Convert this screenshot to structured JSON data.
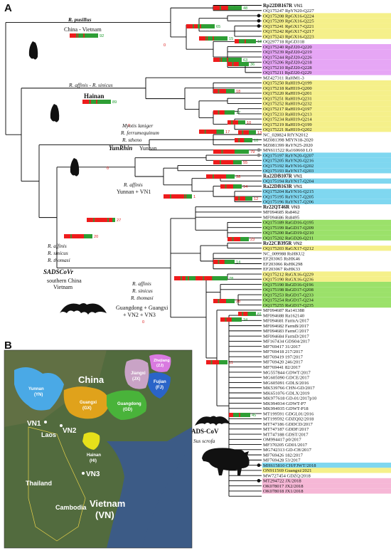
{
  "panels": {
    "a": "A",
    "b": "B"
  },
  "colors": {
    "red": "#ee1c1c",
    "green": "#2e9e35",
    "branch": "#000000"
  },
  "tips": [
    {
      "name": "Rp22DB167R",
      "vn": "VN1",
      "bold": true,
      "hl": ""
    },
    {
      "name": "OQ175247 RpYN20-Q227",
      "vn": "",
      "bold": false,
      "hl": ""
    },
    {
      "name": "OQ175208 RpGX16-Q224",
      "vn": "",
      "bold": false,
      "hl": "#f5f08a"
    },
    {
      "name": "OQ175209 RpGX16-Q225",
      "vn": "",
      "bold": false,
      "hl": "#f5f08a"
    },
    {
      "name": "OQ175241 RpGX17-Q221",
      "vn": "",
      "bold": false,
      "hl": "#f5f08a"
    },
    {
      "name": "OQ175242 RpGX17-Q217",
      "vn": "",
      "bold": false,
      "hl": "#f5f08a"
    },
    {
      "name": "OQ175243 RpGX16-Q223",
      "vn": "",
      "bold": false,
      "hl": "#f5f08a"
    },
    {
      "name": "OQ297718 RpGD318",
      "vn": "",
      "bold": false,
      "hl": ""
    },
    {
      "name": "OQ175240 RpZJ20-Q220",
      "vn": "",
      "bold": false,
      "hl": "#e6a6f5"
    },
    {
      "name": "OQ175239 RpZJ20-Q219",
      "vn": "",
      "bold": false,
      "hl": "#e6a6f5"
    },
    {
      "name": "OQ175244 RpZJ20-Q226",
      "vn": "",
      "bold": false,
      "hl": "#e6a6f5"
    },
    {
      "name": "OQ175206 RpZJ20-Q218",
      "vn": "",
      "bold": false,
      "hl": "#e6a6f5"
    },
    {
      "name": "OQ175210 RpZJ20-Q228",
      "vn": "",
      "bold": false,
      "hl": "#e6a6f5"
    },
    {
      "name": "OQ175211 RpZJ20-Q229",
      "vn": "",
      "bold": false,
      "hl": "#e6a6f5"
    },
    {
      "name": "MZ427311 RaHM1-3",
      "vn": "",
      "bold": false,
      "hl": ""
    },
    {
      "name": "OQ175250 RaHI19-Q199",
      "vn": "",
      "bold": false,
      "hl": "#f5f08a"
    },
    {
      "name": "OQ175218 RaHI19-Q200",
      "vn": "",
      "bold": false,
      "hl": "#f5f08a"
    },
    {
      "name": "OQ175220 RaHI19-Q201",
      "vn": "",
      "bold": false,
      "hl": "#f5f08a"
    },
    {
      "name": "OQ175251 RaHI19-Q231",
      "vn": "",
      "bold": false,
      "hl": "#f5f08a"
    },
    {
      "name": "OQ175252 RaHI19-Q232",
      "vn": "",
      "bold": false,
      "hl": "#f5f08a"
    },
    {
      "name": "OQ175217 RaHI19-Q197",
      "vn": "",
      "bold": false,
      "hl": "#f5f08a"
    },
    {
      "name": "OQ175233 RaHI19-Q213",
      "vn": "",
      "bold": false,
      "hl": "#f5f08a"
    },
    {
      "name": "OQ175234 RaHI19-Q214",
      "vn": "",
      "bold": false,
      "hl": "#f5f08a"
    },
    {
      "name": "OQ175219 RaHI19-Q199",
      "vn": "",
      "bold": false,
      "hl": "#f5f08a"
    },
    {
      "name": "OQ175221 RaHI19-Q202",
      "vn": "",
      "bold": false,
      "hl": "#f5f08a"
    },
    {
      "name": "NC_028824 RfYN2012",
      "vn": "",
      "bold": false,
      "hl": ""
    },
    {
      "name": "MZ081398 MlYN18-2020",
      "vn": "",
      "bold": false,
      "hl": ""
    },
    {
      "name": "MZ081399 RsYN25-2020",
      "vn": "",
      "bold": false,
      "hl": ""
    },
    {
      "name": "MN611522 Ra160660 LO",
      "vn": "",
      "bold": false,
      "hl": ""
    },
    {
      "name": "OQ175197 RaYN20-Q207",
      "vn": "",
      "bold": false,
      "hl": "#7fd7f0"
    },
    {
      "name": "OQ175205 RaYN20-Q216",
      "vn": "",
      "bold": false,
      "hl": "#7fd7f0"
    },
    {
      "name": "OQ175192 RaYN16-Q202",
      "vn": "",
      "bold": false,
      "hl": "#7fd7f0"
    },
    {
      "name": "OQ175193 RaYN17-Q203",
      "vn": "",
      "bold": false,
      "hl": "#7fd7f0"
    },
    {
      "name": "Ra22DB107R",
      "vn": "VN1",
      "bold": true,
      "hl": ""
    },
    {
      "name": "OQ175194 RaYN17-Q204",
      "vn": "",
      "bold": false,
      "hl": "#7fd7f0"
    },
    {
      "name": "Ra22DB163R",
      "vn": "VN1",
      "bold": true,
      "hl": ""
    },
    {
      "name": "OQ175204 RaYN16-Q215",
      "vn": "",
      "bold": false,
      "hl": "#7fd7f0"
    },
    {
      "name": "OQ175195 RaYN17-Q205",
      "vn": "",
      "bold": false,
      "hl": "#7fd7f0"
    },
    {
      "name": "OQ175196 RaYN17-Q206",
      "vn": "",
      "bold": false,
      "hl": "#7fd7f0"
    },
    {
      "name": "Rr22QT46R",
      "vn": "VN3",
      "bold": true,
      "hl": ""
    },
    {
      "name": "MF094685 Rs8462",
      "vn": "",
      "bold": false,
      "hl": ""
    },
    {
      "name": "MF094686 Rs8495",
      "vn": "",
      "bold": false,
      "hl": ""
    },
    {
      "name": "OQ175189 RaGD16-Q195",
      "vn": "",
      "bold": false,
      "hl": "#9be16a"
    },
    {
      "name": "OQ175199 RaGD17-Q209",
      "vn": "",
      "bold": false,
      "hl": "#9be16a"
    },
    {
      "name": "OQ175200 RaGD19-Q210",
      "vn": "",
      "bold": false,
      "hl": "#9be16a"
    },
    {
      "name": "OQ175202 RaGD20-Q211",
      "vn": "",
      "bold": false,
      "hl": "#9be16a"
    },
    {
      "name": "Rr22CB395R",
      "vn": "VN2",
      "bold": true,
      "hl": ""
    },
    {
      "name": "OQ175203 RaGX17-Q212",
      "vn": "",
      "bold": false,
      "hl": "#f5f08a"
    },
    {
      "name": "NC_009988 RsHKU2",
      "vn": "",
      "bold": false,
      "hl": ""
    },
    {
      "name": "EF203065 RsHK46",
      "vn": "",
      "bold": false,
      "hl": ""
    },
    {
      "name": "EF203066 RsHK298",
      "vn": "",
      "bold": false,
      "hl": ""
    },
    {
      "name": "EF203067 RsHK33",
      "vn": "",
      "bold": false,
      "hl": ""
    },
    {
      "name": "OQ175212 RsGX16-Q229",
      "vn": "",
      "bold": false,
      "hl": "#f5f08a"
    },
    {
      "name": "OQ175190 RsGX16-Q236",
      "vn": "",
      "bold": false,
      "hl": "#f5f08a"
    },
    {
      "name": "OQ175190 RsGD16-Q196",
      "vn": "",
      "bold": false,
      "hl": "#9be16a"
    },
    {
      "name": "OQ175198 RsGD17-Q208",
      "vn": "",
      "bold": false,
      "hl": "#9be16a"
    },
    {
      "name": "OQ175253 RsGD17-Q233",
      "vn": "",
      "bold": false,
      "hl": "#9be16a"
    },
    {
      "name": "OQ175254 RsGD17-Q234",
      "vn": "",
      "bold": false,
      "hl": "#9be16a"
    },
    {
      "name": "OQ175255 RsGD17-Q235",
      "vn": "",
      "bold": false,
      "hl": "#9be16a"
    },
    {
      "name": "MF094687 Ra141388",
      "vn": "",
      "bold": false,
      "hl": ""
    },
    {
      "name": "MF094688 Ra162140",
      "vn": "",
      "bold": false,
      "hl": ""
    },
    {
      "name": "MF094681 FarmA/2017",
      "vn": "",
      "bold": false,
      "hl": ""
    },
    {
      "name": "MF094682 FarmB/2017",
      "vn": "",
      "bold": false,
      "hl": ""
    },
    {
      "name": "MF094683 FarmC/2017",
      "vn": "",
      "bold": false,
      "hl": ""
    },
    {
      "name": "MF094684 FarmD/2017",
      "vn": "",
      "bold": false,
      "hl": ""
    },
    {
      "name": "MF167434 GDS04/2017",
      "vn": "",
      "bold": false,
      "hl": ""
    },
    {
      "name": "MF769417 31/2017",
      "vn": "",
      "bold": false,
      "hl": ""
    },
    {
      "name": "MF769418 217/2017",
      "vn": "",
      "bold": false,
      "hl": ""
    },
    {
      "name": "MF769419 197/2017",
      "vn": "",
      "bold": false,
      "hl": ""
    },
    {
      "name": "MF769420 246/2017",
      "vn": "",
      "bold": false,
      "hl": ""
    },
    {
      "name": "MF769441 82/2017",
      "vn": "",
      "bold": false,
      "hl": ""
    },
    {
      "name": "MG557844 GDWT/2017",
      "vn": "",
      "bold": false,
      "hl": ""
    },
    {
      "name": "MG605090 GDCE/2017",
      "vn": "",
      "bold": false,
      "hl": ""
    },
    {
      "name": "MG605091 GDLS/2016",
      "vn": "",
      "bold": false,
      "hl": ""
    },
    {
      "name": "MK539766 CHN-GD/2017",
      "vn": "",
      "bold": false,
      "hl": ""
    },
    {
      "name": "MK651076 GDLX/2019",
      "vn": "",
      "bold": false,
      "hl": ""
    },
    {
      "name": "MK977618 GD-01/2017p10",
      "vn": "",
      "bold": false,
      "hl": ""
    },
    {
      "name": "MK994934 GDWT-P7",
      "vn": "",
      "bold": false,
      "hl": ""
    },
    {
      "name": "MK994935 GDWT-P18",
      "vn": "",
      "bold": false,
      "hl": ""
    },
    {
      "name": "MT199591 GDGL01/2016",
      "vn": "",
      "bold": false,
      "hl": ""
    },
    {
      "name": "MT199592 GDZQ02/2018",
      "vn": "",
      "bold": false,
      "hl": ""
    },
    {
      "name": "MT747186 GDDCD/2017",
      "vn": "",
      "bold": false,
      "hl": ""
    },
    {
      "name": "MT747187 GDDF/2017",
      "vn": "",
      "bold": false,
      "hl": ""
    },
    {
      "name": "MT747188 GDST/2017",
      "vn": "",
      "bold": false,
      "hl": ""
    },
    {
      "name": "OM994417 p0/2017",
      "vn": "",
      "bold": false,
      "hl": ""
    },
    {
      "name": "MF370205 GD01/2017",
      "vn": "",
      "bold": false,
      "hl": ""
    },
    {
      "name": "MG742313 GD-CH/2017",
      "vn": "",
      "bold": false,
      "hl": ""
    },
    {
      "name": "MF769426 182/2017",
      "vn": "",
      "bold": false,
      "hl": ""
    },
    {
      "name": "MF769428 53/2017",
      "vn": "",
      "bold": false,
      "hl": ""
    },
    {
      "name": "MH615810 CH/FJWT/2018",
      "vn": "",
      "bold": false,
      "hl": "#7fd7f0"
    },
    {
      "name": "ON911569 Guangxi/2021",
      "vn": "",
      "bold": false,
      "hl": "#f5f08a"
    },
    {
      "name": "MW727454 GDZQ/2018",
      "vn": "",
      "bold": false,
      "hl": ""
    },
    {
      "name": "MT294722 JX/2018",
      "vn": "",
      "bold": false,
      "hl": "#f6b7d6"
    },
    {
      "name": "OK078017 JX2/2018",
      "vn": "",
      "bold": false,
      "hl": "#f6b7d6"
    },
    {
      "name": "OK078018 JX1/2018",
      "vn": "",
      "bold": false,
      "hl": "#f6b7d6"
    }
  ],
  "clade_labels": {
    "pusillus_sp": "R. pusillus",
    "pusillus_loc": "China - Vietnam",
    "hainan_sp": "R. affinis - R. sinicus",
    "hainan_loc": "Hainan",
    "yunrhin_sp1": "Myotis laniger",
    "yunrhin_sp2": "R. ferrumequinum",
    "yunrhin_sp3": "R. stheno",
    "yunrhin_name": "YunRhin",
    "yunrhin_loc": "Yunnan",
    "ra_sp": "R. affinis",
    "ra_loc": "Yunnan + VN1",
    "sadscovr_sp1": "R. affinis",
    "sadscovr_sp2": "R. sinicus",
    "sadscovr_sp3": "R. thomasi",
    "sadscovr_name": "SADSCoVr",
    "sadscovr_loc1": "southern China",
    "sadscovr_loc2": "Vietnam",
    "gd_sp1": "R. affinis",
    "gd_sp2": "R. sinicus",
    "gd_sp3": "R. thomasi",
    "gd_loc1": "Guangdong + Guangxi",
    "gd_loc2": "+ VN2 + VN3",
    "sads_name": "SADS-CoV",
    "sads_host": "Sus scrofa"
  },
  "support": {
    "pusillus": "92",
    "top": "48",
    "rp_a": "65",
    "rp_b": "15",
    "rp_c": "18",
    "rp_d": "63",
    "rp_e": "36",
    "hainan": "89",
    "h_a": "18",
    "h_b": "17",
    "h_c": "10",
    "h_d": "13",
    "h_e": "10",
    "h_f": "17",
    "h_g": "3",
    "yunrhin": "79",
    "ra_top": "55",
    "ra_a": "38",
    "ra_b": "14",
    "ra_c": "12",
    "ra_3": "3",
    "ra_4": "4",
    "ra_11": "11",
    "ra_1": "1",
    "ra_8": "8",
    "root_27": "27",
    "sadscovr": "20",
    "gd_59": "59",
    "gd_78": "78",
    "gd_23": "23",
    "gd_28": "28",
    "gd_14": "14",
    "gd_81": "81",
    "gd_24": "24",
    "gd_11": "11",
    "gd_6": "6",
    "sads_45": "45",
    "r0a": "0",
    "r0b": "0",
    "r0c": "0",
    "r0d": "0"
  },
  "map": {
    "china": "China",
    "yunnan": "Yunnan",
    "yunnan_ab": "(YN)",
    "guangxi": "Guangxi",
    "guangxi_ab": "(GX)",
    "guangdong": "Guangdong",
    "guangdong_ab": "(GD)",
    "jiangxi": "Jiangxi",
    "jiangxi_ab": "(JX)",
    "zhejiang": "Zhejiang",
    "zhejiang_ab": "(ZJ)",
    "fujian": "Fujian",
    "fujian_ab": "(FJ)",
    "hainan": "Hainan",
    "hainan_ab": "(HI)",
    "laos": "Laos",
    "thailand": "Thailand",
    "cambodia": "Cambodia",
    "vietnam": "Vietnam",
    "vietnam_ab": "(VN)",
    "vn1": "VN1",
    "vn2": "VN2",
    "vn3": "VN3"
  }
}
